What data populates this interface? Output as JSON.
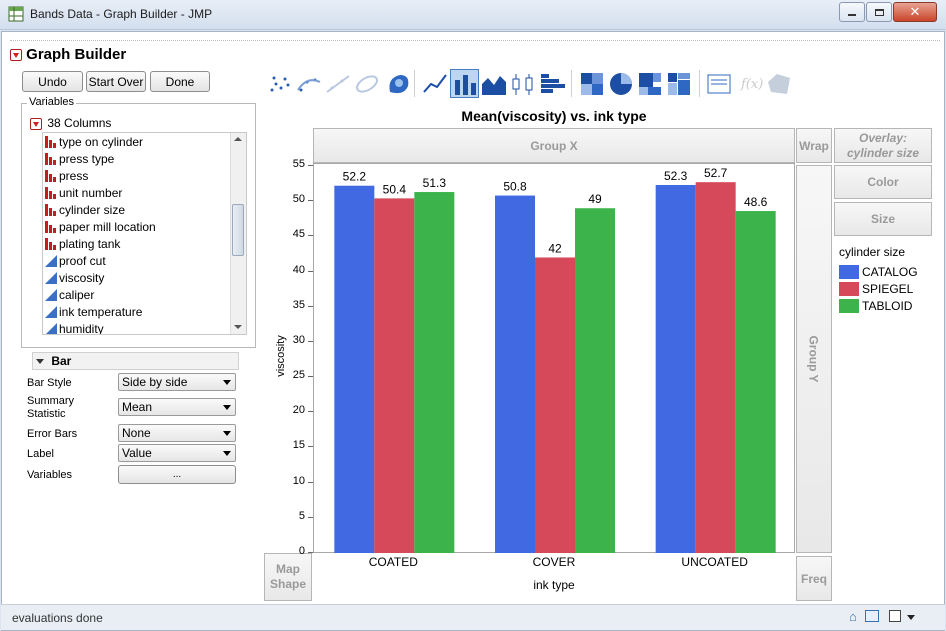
{
  "window": {
    "title": "Bands Data - Graph Builder - JMP"
  },
  "header": {
    "title": "Graph Builder"
  },
  "buttons": {
    "undo": "Undo",
    "start_over": "Start Over",
    "done": "Done"
  },
  "variables": {
    "legend": "Variables",
    "count_label": "38 Columns",
    "columns": [
      {
        "name": "type on cylinder",
        "kind": "nominal"
      },
      {
        "name": "press type",
        "kind": "nominal"
      },
      {
        "name": "press",
        "kind": "nominal"
      },
      {
        "name": "unit number",
        "kind": "nominal"
      },
      {
        "name": "cylinder size",
        "kind": "nominal"
      },
      {
        "name": "paper mill location",
        "kind": "nominal"
      },
      {
        "name": "plating tank",
        "kind": "nominal"
      },
      {
        "name": "proof cut",
        "kind": "continuous"
      },
      {
        "name": "viscosity",
        "kind": "continuous"
      },
      {
        "name": "caliper",
        "kind": "continuous"
      },
      {
        "name": "ink temperature",
        "kind": "continuous"
      },
      {
        "name": "humidity",
        "kind": "continuous"
      }
    ]
  },
  "bar_panel": {
    "title": "Bar",
    "options": [
      {
        "label": "Bar Style",
        "value": "Side by side"
      },
      {
        "label": "Summary Statistic",
        "value": "Mean"
      },
      {
        "label": "Error Bars",
        "value": "None"
      },
      {
        "label": "Label",
        "value": "Value"
      }
    ],
    "variables_label": "Variables",
    "variables_button": "..."
  },
  "zones": {
    "group_x": "Group X",
    "group_y": "Group Y",
    "wrap": "Wrap",
    "overlay": "Overlay: cylinder size",
    "color": "Color",
    "size": "Size",
    "map_shape": "Map Shape",
    "freq": "Freq"
  },
  "legend": {
    "title": "cylinder size",
    "items": [
      {
        "label": "CATALOG",
        "color": "#4169e1"
      },
      {
        "label": "SPIEGEL",
        "color": "#d6495a"
      },
      {
        "label": "TABLOID",
        "color": "#3cb44b"
      }
    ]
  },
  "status": {
    "text": "evaluations done"
  },
  "toolbar_icons": [
    "points-icon",
    "smoother-icon",
    "line-of-fit-icon",
    "ellipse-icon",
    "contour-icon",
    "line-icon",
    "bar-icon",
    "area-icon",
    "box-plot-icon",
    "histogram-icon",
    "heatmap-icon",
    "pie-icon",
    "treemap-icon",
    "mosaic-icon",
    "caption-box-icon",
    "formula-icon",
    "map-shapes-icon"
  ],
  "chart_data": {
    "type": "bar",
    "title": "Mean(viscosity) vs. ink type",
    "xlabel": "ink type",
    "ylabel": "viscosity",
    "categories": [
      "COATED",
      "COVER",
      "UNCOATED"
    ],
    "ylim": [
      0,
      55
    ],
    "yticks": [
      0,
      5,
      10,
      15,
      20,
      25,
      30,
      35,
      40,
      45,
      50,
      55
    ],
    "series": [
      {
        "name": "CATALOG",
        "values": [
          52.2,
          50.8,
          52.3
        ],
        "labels": [
          "52.2",
          "50.8",
          "52.3"
        ],
        "color": "#4169e1"
      },
      {
        "name": "SPIEGEL",
        "values": [
          50.4,
          42,
          52.7
        ],
        "labels": [
          "50.4",
          "42",
          "52.7"
        ],
        "color": "#d6495a"
      },
      {
        "name": "TABLOID",
        "values": [
          51.3,
          49,
          48.6
        ],
        "labels": [
          "51.3",
          "49",
          "48.6"
        ],
        "color": "#3cb44b"
      }
    ],
    "grid": false,
    "legend_position": "right"
  }
}
